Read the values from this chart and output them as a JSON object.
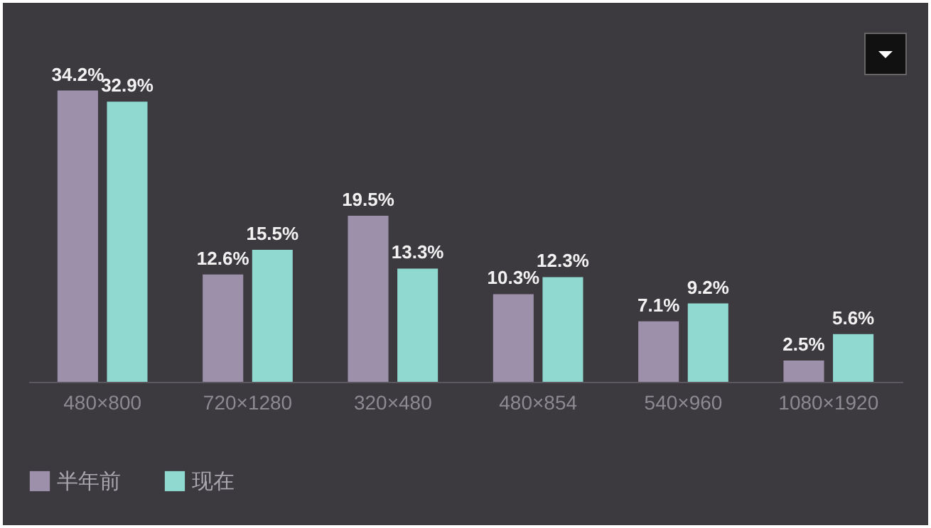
{
  "chart_data": {
    "type": "bar",
    "categories": [
      "480×800",
      "720×1280",
      "320×480",
      "480×854",
      "540×960",
      "1080×1920"
    ],
    "series": [
      {
        "name": "半年前",
        "color": "#9d90ab",
        "values": [
          34.2,
          12.6,
          19.5,
          10.3,
          7.1,
          2.5
        ],
        "value_labels": [
          "34.2%",
          "12.6%",
          "19.5%",
          "10.3%",
          "7.1%",
          "2.5%"
        ]
      },
      {
        "name": "现在",
        "color": "#8fd9d0",
        "values": [
          32.9,
          15.5,
          13.3,
          12.3,
          9.2,
          5.6
        ],
        "value_labels": [
          "32.9%",
          "15.5%",
          "13.3%",
          "12.3%",
          "9.2%",
          "5.6%"
        ]
      }
    ],
    "legend": "bottom"
  }
}
